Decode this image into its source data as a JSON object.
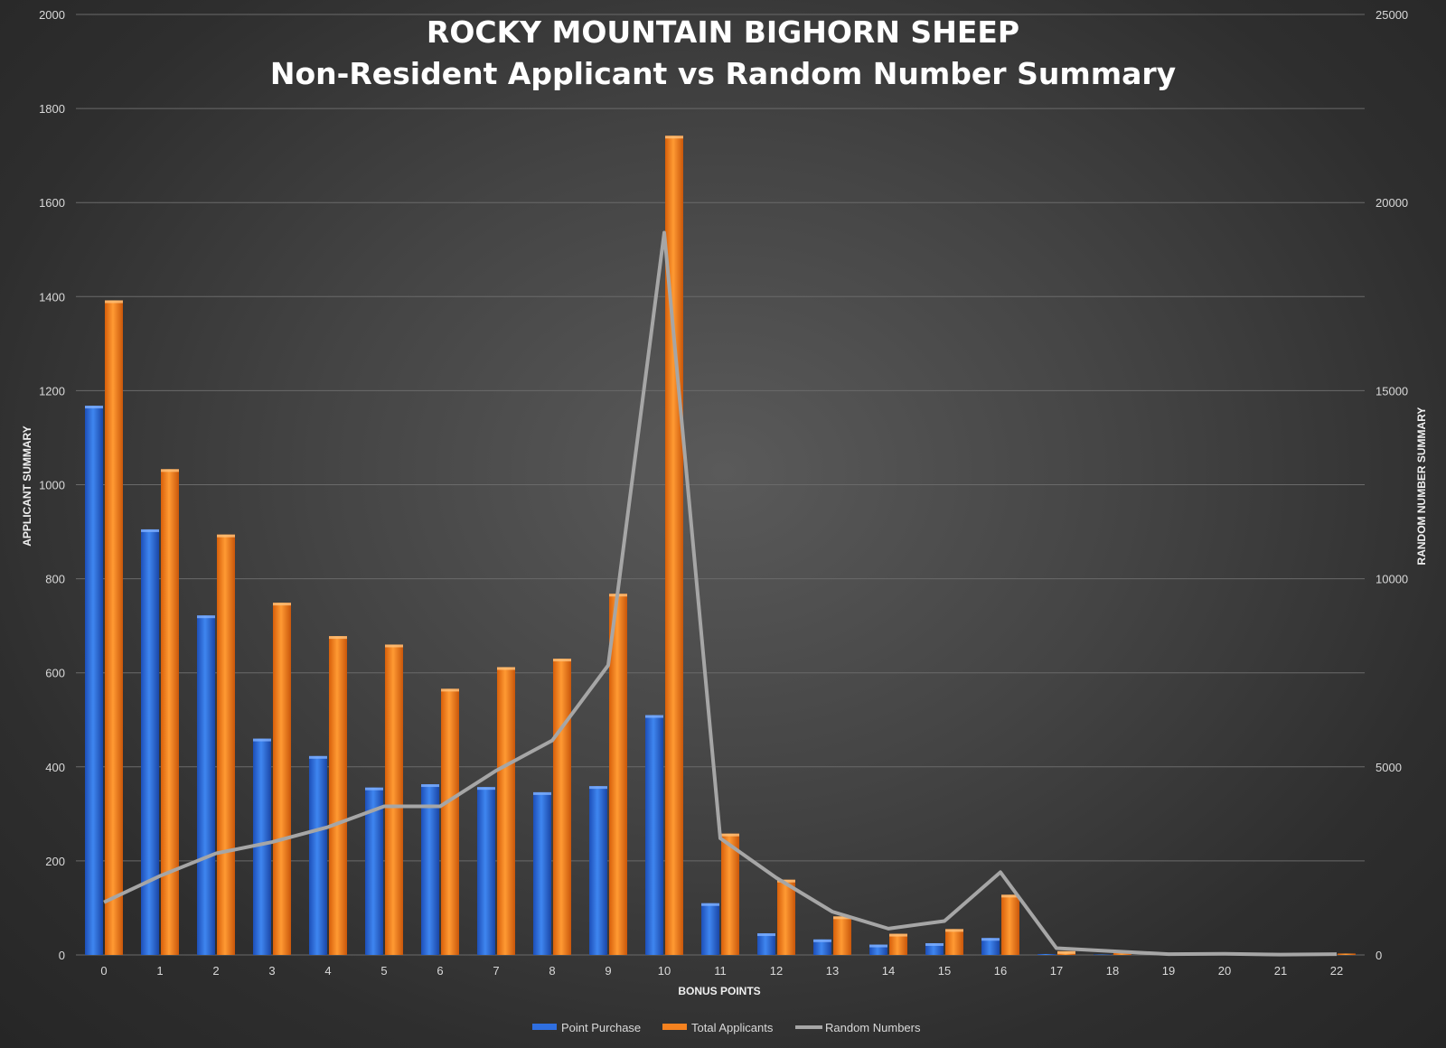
{
  "chart_data": {
    "type": "bar",
    "title": "ROCKY MOUNTAIN BIGHORN SHEEP",
    "subtitle": "Non-Resident Applicant vs Random Number Summary",
    "xlabel": "BONUS POINTS",
    "ylabel": "APPLICANT SUMMARY",
    "y2label": "RANDOM NUMBER SUMMARY",
    "categories": [
      "0",
      "1",
      "2",
      "3",
      "4",
      "5",
      "6",
      "7",
      "8",
      "9",
      "10",
      "11",
      "12",
      "13",
      "14",
      "15",
      "16",
      "17",
      "18",
      "19",
      "20",
      "21",
      "22"
    ],
    "ylim": [
      0,
      2000
    ],
    "y_ticks": [
      "0",
      "200",
      "400",
      "600",
      "800",
      "1000",
      "1200",
      "1400",
      "1600",
      "1800",
      "2000"
    ],
    "y2lim": [
      0,
      25000
    ],
    "y2_ticks": [
      "0",
      "5000",
      "10000",
      "15000",
      "20000",
      "25000"
    ],
    "grid": true,
    "legend_position": "bottom",
    "series": [
      {
        "name": "Point Purchase",
        "type": "bar",
        "color": "#2f6fe0",
        "values": [
          1168,
          905,
          722,
          460,
          423,
          356,
          363,
          357,
          346,
          359,
          510,
          110,
          46,
          33,
          22,
          25,
          36,
          2,
          1,
          0,
          0,
          0,
          0
        ]
      },
      {
        "name": "Total Applicants",
        "type": "bar",
        "color": "#f5821f",
        "values": [
          1392,
          1033,
          894,
          749,
          678,
          660,
          566,
          612,
          630,
          768,
          1742,
          258,
          160,
          82,
          45,
          55,
          128,
          8,
          5,
          2,
          2,
          1,
          3
        ]
      },
      {
        "name": "Random Numbers",
        "type": "line",
        "color": "#a6a6a6",
        "axis": "secondary",
        "values": [
          1400,
          2100,
          2700,
          3000,
          3400,
          3950,
          3950,
          4900,
          5700,
          7700,
          19200,
          3100,
          2050,
          1150,
          700,
          900,
          2200,
          180,
          100,
          20,
          30,
          10,
          20
        ]
      }
    ]
  }
}
